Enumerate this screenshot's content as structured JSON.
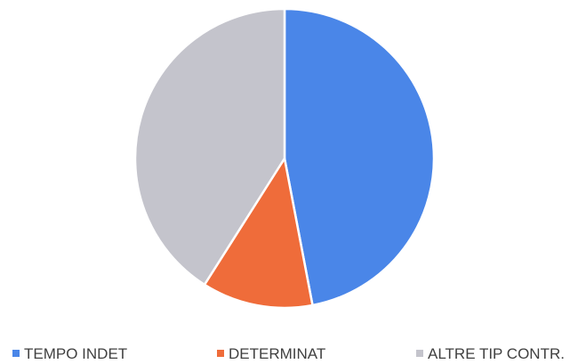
{
  "chart_data": {
    "type": "pie",
    "title": "",
    "categories": [
      "TEMPO INDET",
      "DETERMINAT",
      "ALTRE TIP CONTR."
    ],
    "values": [
      47,
      12,
      41
    ],
    "unit": "%",
    "colors": [
      "#4a86e8",
      "#ef6c3a",
      "#c4c4cc"
    ],
    "start_angle_deg": 0,
    "direction": "clockwise",
    "legend": {
      "position": "bottom",
      "marker": "square"
    }
  }
}
